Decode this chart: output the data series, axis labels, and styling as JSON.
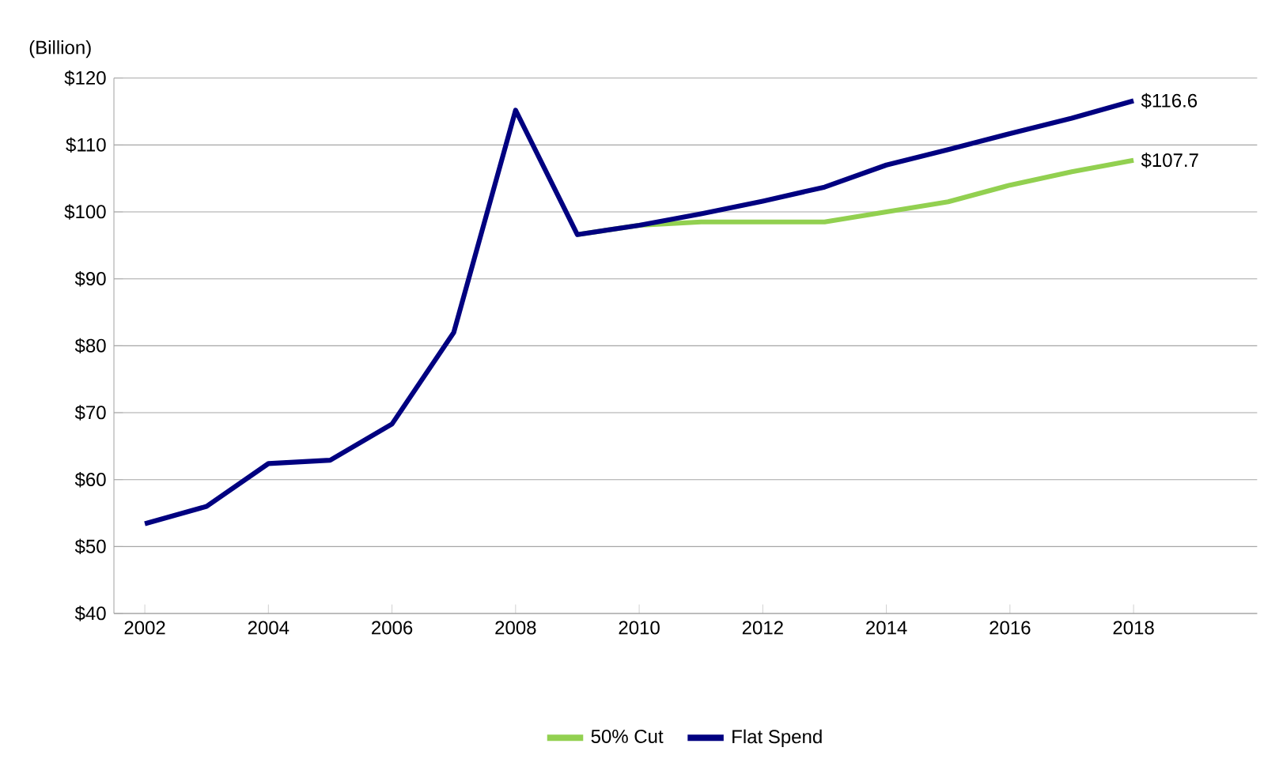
{
  "chart_data": {
    "type": "line",
    "ylabel": "(Billion)",
    "x": [
      2002,
      2003,
      2004,
      2005,
      2006,
      2007,
      2008,
      2009,
      2010,
      2011,
      2012,
      2013,
      2014,
      2015,
      2016,
      2017,
      2018
    ],
    "series": [
      {
        "name": "50% Cut",
        "color": "#92d050",
        "x": [
          2009,
          2010,
          2011,
          2012,
          2013,
          2014,
          2015,
          2016,
          2017,
          2018
        ],
        "values": [
          96.6,
          98,
          98.5,
          98.5,
          98.5,
          100,
          101.5,
          104,
          106,
          107.7
        ]
      },
      {
        "name": "Flat Spend",
        "color": "#000080",
        "values": [
          53.4,
          56,
          62.4,
          62.9,
          68.3,
          82,
          115.2,
          96.6,
          98,
          99.7,
          101.6,
          103.7,
          107,
          109.3,
          111.7,
          114,
          116.6
        ]
      }
    ],
    "xlim": [
      2001.5,
      2020
    ],
    "xticks": [
      2002,
      2004,
      2006,
      2008,
      2010,
      2012,
      2014,
      2016,
      2018
    ],
    "ylim": [
      40,
      120
    ],
    "yticks": [
      {
        "value": 40,
        "label": "$40"
      },
      {
        "value": 50,
        "label": "$50"
      },
      {
        "value": 60,
        "label": "$60"
      },
      {
        "value": 70,
        "label": "$70"
      },
      {
        "value": 80,
        "label": "$80"
      },
      {
        "value": 90,
        "label": "$90"
      },
      {
        "value": 100,
        "label": "$100"
      },
      {
        "value": 110,
        "label": "$110"
      },
      {
        "value": 120,
        "label": "$120"
      }
    ],
    "grid": "y",
    "legend": "bottom",
    "annotations": [
      {
        "text": "$116.6",
        "x": 2018,
        "y": 116.6
      },
      {
        "text": "$107.7",
        "x": 2018,
        "y": 107.7
      }
    ]
  }
}
